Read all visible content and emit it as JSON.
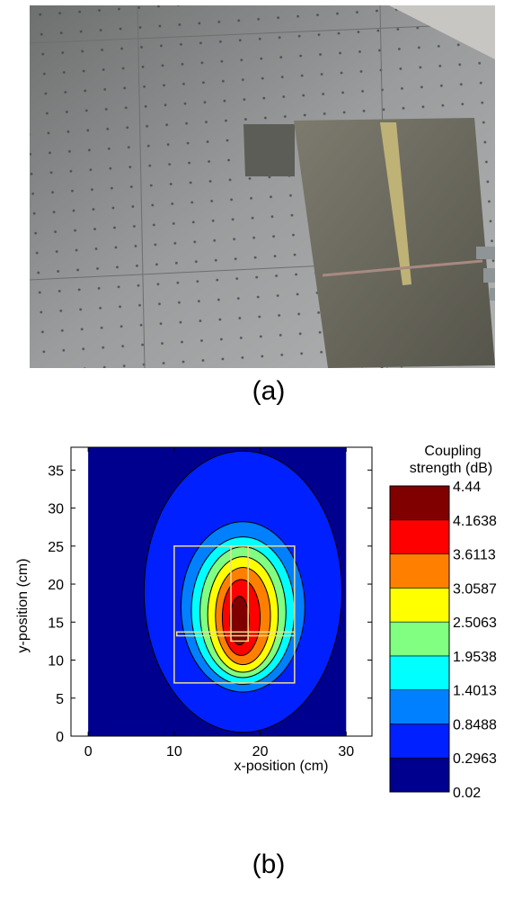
{
  "panels": {
    "a": {
      "caption": "(a)",
      "photo_icon": "experimental-setup-photo"
    },
    "b": {
      "caption": "(b)"
    }
  },
  "chart_data": {
    "type": "heatmap",
    "subtype": "filled-contour",
    "title": "",
    "xlabel": "x-position (cm)",
    "ylabel": "y-position (cm)",
    "xlim": [
      -2,
      33
    ],
    "ylim": [
      0,
      38
    ],
    "xticks": [
      0,
      10,
      20,
      30
    ],
    "yticks": [
      0,
      5,
      10,
      15,
      20,
      25,
      30,
      35
    ],
    "grid": false,
    "measured_x_range": [
      0,
      30
    ],
    "peak": {
      "x": 18,
      "y": 15,
      "value": 4.44
    },
    "colorbar": {
      "title_line1": "Coupling",
      "title_line2": "strength (dB)",
      "position": "right",
      "range": [
        0.02,
        4.44
      ],
      "ticks": [
        "4.44",
        "4.1638",
        "3.6113",
        "3.0587",
        "2.5063",
        "1.9538",
        "1.4013",
        "0.8488",
        "0.2963",
        "0.02"
      ]
    },
    "levels": [
      {
        "min": 0.02,
        "max": 0.2963,
        "color": "#00008f",
        "center": [
          18,
          19
        ],
        "rx": 22,
        "ry": 40
      },
      {
        "min": 0.2963,
        "max": 0.8488,
        "color": "#0020ff",
        "center": [
          18,
          19
        ],
        "rx": 11.5,
        "ry": 18.5
      },
      {
        "min": 0.8488,
        "max": 1.4013,
        "color": "#0080ff",
        "center": [
          18,
          17
        ],
        "rx": 7.2,
        "ry": 11.2
      },
      {
        "min": 1.4013,
        "max": 1.9538,
        "color": "#00ffff",
        "center": [
          18,
          16.5
        ],
        "rx": 6.0,
        "ry": 9.7
      },
      {
        "min": 1.9538,
        "max": 2.5063,
        "color": "#80ff80",
        "center": [
          18,
          16.3
        ],
        "rx": 5.0,
        "ry": 8.6
      },
      {
        "min": 2.5063,
        "max": 3.0587,
        "color": "#ffff00",
        "center": [
          18,
          16
        ],
        "rx": 4.1,
        "ry": 7.6
      },
      {
        "min": 3.0587,
        "max": 3.6113,
        "color": "#ff8000",
        "center": [
          18,
          15.8
        ],
        "rx": 3.2,
        "ry": 6.4
      },
      {
        "min": 3.6113,
        "max": 4.1638,
        "color": "#ff0000",
        "center": [
          17.8,
          15.6
        ],
        "rx": 2.2,
        "ry": 5.0
      },
      {
        "min": 4.1638,
        "max": 4.44,
        "color": "#800000",
        "center": [
          17.6,
          15.2
        ],
        "rx": 1.1,
        "ry": 3.2
      }
    ],
    "overlays": [
      {
        "name": "outer-plate-outline",
        "x": [
          10,
          24
        ],
        "y": [
          7,
          25
        ],
        "color": "#e8e08c"
      },
      {
        "name": "strip-outline",
        "x": [
          16.6,
          18.6
        ],
        "y": [
          12.5,
          25
        ],
        "color": "#e8e08c"
      },
      {
        "name": "feed-line-outline",
        "x": [
          10.3,
          24
        ],
        "y": [
          13.2,
          13.7
        ],
        "color": "#e8e08c"
      }
    ]
  }
}
